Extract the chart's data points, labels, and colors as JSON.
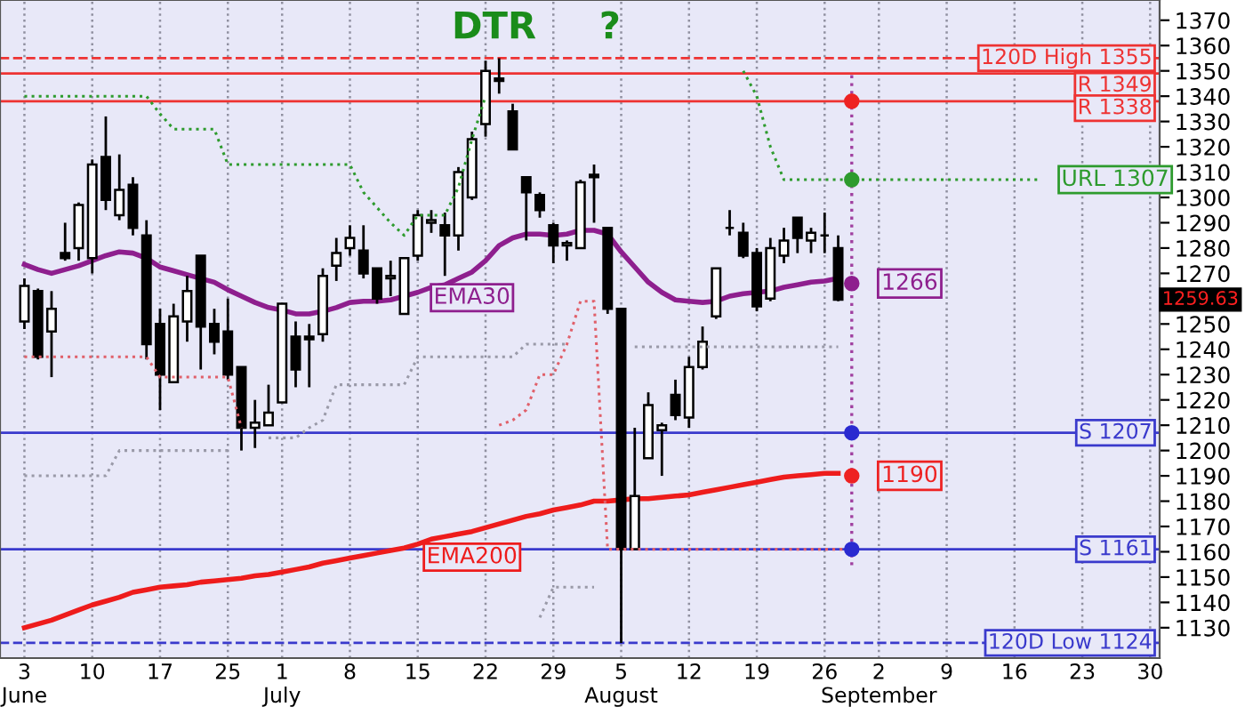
{
  "chart_data": {
    "type": "candlestick",
    "color": "#000000",
    "categories": [
      "3\nJune",
      null,
      null,
      null,
      null,
      "10",
      null,
      null,
      null,
      null,
      "17",
      null,
      null,
      null,
      null,
      "25",
      null,
      null,
      null,
      "1\nJuly",
      null,
      null,
      null,
      null,
      "8",
      null,
      null,
      null,
      null,
      "15",
      null,
      null,
      null,
      null,
      "22",
      null,
      null,
      null,
      null,
      "29",
      null,
      null,
      null,
      null,
      "5\nAugust",
      null,
      null,
      null,
      null,
      "12",
      null,
      null,
      null,
      null,
      "19",
      null,
      null,
      null,
      null,
      "26",
      null,
      null,
      null,
      "2\nSeptember",
      null,
      null,
      null,
      null,
      "9",
      null,
      null,
      null,
      null,
      "16",
      null,
      null,
      null,
      null,
      "23",
      null,
      null,
      null,
      null,
      "30"
    ],
    "ohlc": [
      [
        1251,
        1268,
        1248,
        1265
      ],
      [
        1263,
        1264,
        1236,
        1237
      ],
      [
        1247,
        1263,
        1229,
        1256
      ],
      [
        1278,
        1290,
        1275,
        1276
      ],
      [
        1280,
        1298,
        1275,
        1297
      ],
      [
        1276,
        1315,
        1270,
        1313
      ],
      [
        1316,
        1332,
        1295,
        1299
      ],
      [
        1293,
        1317,
        1291,
        1303
      ],
      [
        1305,
        1308,
        1285,
        1288
      ],
      [
        1285,
        1291,
        1236,
        1242
      ],
      [
        1250,
        1256,
        1216,
        1230
      ],
      [
        1227,
        1258,
        1227,
        1253
      ],
      [
        1251,
        1269,
        1243,
        1263
      ],
      [
        1277,
        1277,
        1232,
        1249
      ],
      [
        1250,
        1256,
        1238,
        1243
      ],
      [
        1247,
        1260,
        1228,
        1230
      ],
      [
        1233,
        1233,
        1200,
        1209
      ],
      [
        1209,
        1220,
        1201,
        1211
      ],
      [
        1210,
        1226,
        1210,
        1215
      ],
      [
        1219,
        1258,
        1219,
        1258
      ],
      [
        1245,
        1251,
        1225,
        1232
      ],
      [
        1245,
        1250,
        1225,
        1244
      ],
      [
        1246,
        1272,
        1243,
        1269
      ],
      [
        1273,
        1284,
        1267,
        1278
      ],
      [
        1280,
        1289,
        1277,
        1284
      ],
      [
        1279,
        1289,
        1268,
        1270
      ],
      [
        1272,
        1272,
        1258,
        1260
      ],
      [
        1268,
        1275,
        1261,
        1269
      ],
      [
        1254,
        1276,
        1254,
        1276
      ],
      [
        1277,
        1295,
        1275,
        1293
      ],
      [
        1290,
        1295,
        1286,
        1291
      ],
      [
        1289,
        1294,
        1269,
        1285
      ],
      [
        1285,
        1312,
        1279,
        1310
      ],
      [
        1300,
        1326,
        1299,
        1323
      ],
      [
        1329,
        1354,
        1324,
        1350
      ],
      [
        1347,
        1355,
        1341,
        1346
      ],
      [
        1334,
        1337,
        1319,
        1319
      ],
      [
        1308,
        1308,
        1283,
        1302
      ],
      [
        1301,
        1302,
        1292,
        1295
      ],
      [
        1289,
        1290,
        1274,
        1281
      ],
      [
        1281,
        1283,
        1275,
        1282
      ],
      [
        1280,
        1307,
        1280,
        1306
      ],
      [
        1309,
        1313,
        1290,
        1308
      ],
      [
        1288,
        1288,
        1254,
        1256
      ],
      [
        1256,
        1256,
        1124,
        1161
      ],
      [
        1161,
        1209,
        1161,
        1182
      ],
      [
        1197,
        1223,
        1197,
        1218
      ],
      [
        1208,
        1211,
        1190,
        1210
      ],
      [
        1222,
        1228,
        1212,
        1214
      ],
      [
        1213,
        1237,
        1209,
        1233
      ],
      [
        1233,
        1249,
        1232,
        1243
      ],
      [
        1253,
        1272,
        1252,
        1272
      ],
      [
        1288,
        1295,
        1285,
        1288
      ],
      [
        1286,
        1290,
        1276,
        1277
      ],
      [
        1278,
        1280,
        1255,
        1257
      ],
      [
        1260,
        1284,
        1259,
        1280
      ],
      [
        1277,
        1288,
        1274,
        1283
      ],
      [
        1292,
        1292,
        1278,
        1284
      ],
      [
        1283,
        1288,
        1278,
        1286
      ],
      [
        1285,
        1294,
        1278,
        1285
      ],
      [
        1280,
        1285,
        1259,
        1259.63
      ],
      null,
      null,
      null,
      null,
      null,
      null,
      null,
      null,
      null,
      null,
      null,
      null,
      null,
      null,
      null,
      null,
      null,
      null,
      null,
      null,
      null,
      null,
      null
    ],
    "series": [
      {
        "name": "EMA30",
        "type": "line",
        "color": "#8e1f8e",
        "line_style": "solid",
        "values": [
          1273.5,
          1271.5,
          1270,
          1271.5,
          1273,
          1275,
          1277,
          1278.5,
          1278,
          1276,
          1272.5,
          1271,
          1269.5,
          1268,
          1266.5,
          1263.5,
          1261,
          1258.5,
          1256.5,
          1255.5,
          1254,
          1254,
          1255,
          1256.5,
          1258.5,
          1259,
          1259,
          1259.5,
          1261,
          1262.5,
          1264.5,
          1265.5,
          1268,
          1270.5,
          1275,
          1281,
          1284,
          1285.5,
          1285.5,
          1285,
          1285.5,
          1287,
          1287,
          1285.5,
          1278.5,
          1272.5,
          1266.5,
          1262.5,
          1259.5,
          1259,
          1258.5,
          1259,
          1261,
          1262,
          1262.5,
          1263,
          1264.5,
          1265.5,
          1266.5,
          1267,
          1268,
          null,
          null,
          null,
          null,
          null,
          null,
          null,
          null,
          null,
          null,
          null,
          null,
          null,
          null,
          null,
          null,
          null,
          null,
          null,
          null,
          null,
          null,
          null
        ]
      },
      {
        "name": "EMA200",
        "type": "line",
        "color": "#ee1c1c",
        "line_style": "solid",
        "values": [
          1130,
          1131.5,
          1133,
          1135,
          1137,
          1139,
          1140.5,
          1142,
          1144,
          1145,
          1146,
          1146.5,
          1147,
          1148,
          1148.5,
          1149,
          1149.5,
          1150.5,
          1151,
          1152,
          1153,
          1154,
          1155.5,
          1156.5,
          1157.5,
          1158.5,
          1159.5,
          1160.5,
          1161.5,
          1163,
          1165,
          1166,
          1167,
          1168,
          1169.5,
          1171,
          1172.5,
          1174,
          1175,
          1176.5,
          1177.5,
          1178.5,
          1180,
          1180,
          1180.5,
          1181,
          1181,
          1181.5,
          1182,
          1182.5,
          1183.5,
          1184.5,
          1185.5,
          1186.5,
          1187.5,
          1188.5,
          1189.5,
          1190,
          1190.5,
          1191,
          1191,
          null,
          null,
          null,
          null,
          null,
          null,
          null,
          null,
          null,
          null,
          null,
          null,
          null,
          null,
          null,
          null,
          null,
          null,
          null,
          null,
          null,
          null,
          null
        ]
      },
      {
        "type": "line",
        "color": "#2e9b2e",
        "line_style": "dotted",
        "values": [
          1340,
          1340,
          1340,
          1340,
          1340,
          1340,
          1340,
          1340,
          1340,
          1340,
          1333,
          1327,
          1327,
          1327,
          1327,
          1313,
          1313,
          1313,
          1313,
          1313,
          1313,
          1313,
          1313,
          1313,
          1313,
          1302,
          1296,
          1290,
          1285,
          1293,
          1293,
          1293,
          1304,
          1323,
          1340,
          null,
          null,
          null,
          null,
          null,
          null,
          null,
          null,
          null,
          null,
          null,
          null,
          null,
          null,
          null,
          null,
          null,
          null,
          1350,
          1340,
          1320,
          1307,
          1307,
          1307,
          1307,
          1307,
          1307,
          1307,
          1307,
          1307,
          1307,
          1307,
          1307,
          1307,
          1307,
          1307,
          1307,
          1307,
          1307,
          1307,
          1307,
          null,
          null,
          null,
          null,
          null,
          null,
          null,
          null
        ],
        "value_labels": [
          null,
          null,
          null,
          null,
          null,
          null,
          null,
          null,
          null,
          null,
          null,
          null,
          null,
          null,
          null,
          null,
          null,
          null,
          null,
          null,
          null,
          null,
          null,
          null,
          null,
          null,
          null,
          null,
          null,
          null,
          null,
          null,
          null,
          null,
          null,
          null,
          null,
          null,
          null,
          null,
          null,
          null,
          null,
          null,
          null,
          null,
          null,
          null,
          null,
          null,
          null,
          null,
          null,
          null,
          null,
          null,
          null,
          null,
          null,
          null,
          null,
          null,
          null,
          null,
          null,
          null,
          null,
          null,
          null,
          null,
          null,
          null,
          null,
          null,
          null,
          "URL 1307",
          null,
          null,
          null,
          null,
          null,
          null,
          null,
          null
        ]
      },
      {
        "type": "line",
        "color": "#e0606a",
        "line_style": "dotted",
        "values": [
          1237,
          1237,
          1237,
          1237,
          1237,
          1237,
          1237,
          1237,
          1237,
          1237,
          1229,
          1229,
          1229,
          1229,
          1229,
          1229,
          1209,
          null,
          null,
          null,
          null,
          null,
          null,
          null,
          null,
          null,
          null,
          null,
          null,
          null,
          null,
          null,
          null,
          null,
          null,
          1210,
          1212,
          1216,
          1230,
          1230,
          1242,
          1259,
          1259,
          1161,
          1161,
          1161,
          1161,
          1161,
          1161,
          1161,
          1161,
          1161,
          1161,
          1161,
          1161,
          1161,
          1161,
          1161,
          1161,
          1161,
          1161,
          1161,
          null,
          null,
          null,
          null,
          null,
          null,
          null,
          null,
          null,
          null,
          null,
          null,
          null,
          null,
          null,
          null,
          null,
          null,
          null,
          null,
          null,
          null
        ]
      },
      {
        "type": "line",
        "color": "#9a9aa8",
        "line_style": "dotted",
        "values": [
          1190,
          1190,
          1190,
          1190,
          1190,
          1190,
          1190,
          1200,
          1200,
          1200,
          1200,
          1200,
          1200,
          1200,
          1200,
          1200,
          null,
          null,
          1205,
          1205,
          1205,
          1209,
          1212,
          1226,
          1226,
          1226,
          1226,
          1226,
          1226,
          1237,
          1237,
          1237,
          1237,
          1237,
          1237,
          1237,
          1237,
          1242,
          1242,
          1242,
          1242,
          null,
          null,
          null,
          null,
          1241,
          1241,
          1241,
          1241,
          1241,
          1241,
          1241,
          1241,
          1241,
          1241,
          1241,
          1241,
          1241,
          1241,
          1241,
          1241,
          null,
          null,
          null,
          null,
          null,
          null,
          null,
          null,
          null,
          null,
          null,
          null,
          null,
          null,
          null,
          null,
          null,
          null,
          null,
          null,
          null,
          null,
          null
        ]
      },
      {
        "type": "line",
        "color": "#9a9aa8",
        "line_style": "dotted",
        "values": [
          null,
          null,
          null,
          null,
          null,
          null,
          null,
          null,
          null,
          null,
          null,
          null,
          null,
          null,
          null,
          null,
          null,
          null,
          null,
          null,
          null,
          null,
          null,
          null,
          null,
          null,
          null,
          null,
          null,
          null,
          null,
          null,
          null,
          null,
          null,
          null,
          null,
          null,
          1134,
          1146,
          1146,
          1146,
          1146,
          null,
          null,
          null,
          null,
          null,
          null,
          null,
          null,
          null,
          null,
          null,
          null,
          null,
          null,
          null,
          null,
          null,
          null,
          null,
          null,
          null,
          null,
          null,
          null,
          null,
          null,
          null,
          null,
          null,
          null,
          null,
          null,
          null,
          null,
          null,
          null,
          null,
          null,
          null,
          null,
          null
        ]
      },
      {
        "type": "scatter",
        "marker": "circle",
        "color": "#ee2222",
        "values": [
          null,
          null,
          null,
          null,
          null,
          null,
          null,
          null,
          null,
          null,
          null,
          null,
          null,
          null,
          null,
          null,
          null,
          null,
          null,
          null,
          null,
          null,
          null,
          null,
          null,
          null,
          null,
          null,
          null,
          null,
          null,
          null,
          null,
          null,
          null,
          null,
          null,
          null,
          null,
          null,
          null,
          null,
          null,
          null,
          null,
          null,
          null,
          null,
          null,
          null,
          null,
          null,
          null,
          null,
          null,
          null,
          null,
          null,
          null,
          null,
          null,
          1338,
          null,
          null,
          null,
          null,
          null,
          null,
          null,
          null,
          null,
          null,
          null,
          null,
          null,
          null,
          null,
          null,
          null,
          null,
          null,
          null,
          null,
          null
        ]
      },
      {
        "type": "scatter",
        "marker": "circle",
        "color": "#2e9b2e",
        "values": [
          null,
          null,
          null,
          null,
          null,
          null,
          null,
          null,
          null,
          null,
          null,
          null,
          null,
          null,
          null,
          null,
          null,
          null,
          null,
          null,
          null,
          null,
          null,
          null,
          null,
          null,
          null,
          null,
          null,
          null,
          null,
          null,
          null,
          null,
          null,
          null,
          null,
          null,
          null,
          null,
          null,
          null,
          null,
          null,
          null,
          null,
          null,
          null,
          null,
          null,
          null,
          null,
          null,
          null,
          null,
          null,
          null,
          null,
          null,
          null,
          null,
          1307,
          null,
          null,
          null,
          null,
          null,
          null,
          null,
          null,
          null,
          null,
          null,
          null,
          null,
          null,
          null,
          null,
          null,
          null,
          null,
          null,
          null,
          null
        ]
      },
      {
        "type": "scatter",
        "marker": "circle",
        "color": "#8e1f8e",
        "values": [
          null,
          null,
          null,
          null,
          null,
          null,
          null,
          null,
          null,
          null,
          null,
          null,
          null,
          null,
          null,
          null,
          null,
          null,
          null,
          null,
          null,
          null,
          null,
          null,
          null,
          null,
          null,
          null,
          null,
          null,
          null,
          null,
          null,
          null,
          null,
          null,
          null,
          null,
          null,
          null,
          null,
          null,
          null,
          null,
          null,
          null,
          null,
          null,
          null,
          null,
          null,
          null,
          null,
          null,
          null,
          null,
          null,
          null,
          null,
          null,
          null,
          1266,
          null,
          null,
          null,
          null,
          null,
          null,
          null,
          null,
          null,
          null,
          null,
          null,
          null,
          null,
          null,
          null,
          null,
          null,
          null,
          null,
          null,
          null
        ],
        "value_labels": [
          null,
          null,
          null,
          null,
          null,
          null,
          null,
          null,
          null,
          null,
          null,
          null,
          null,
          null,
          null,
          null,
          null,
          null,
          null,
          null,
          null,
          null,
          null,
          null,
          null,
          null,
          null,
          null,
          null,
          null,
          null,
          null,
          null,
          null,
          null,
          null,
          null,
          null,
          null,
          null,
          null,
          null,
          null,
          null,
          null,
          null,
          null,
          null,
          null,
          null,
          null,
          null,
          null,
          null,
          null,
          null,
          null,
          null,
          null,
          null,
          null,
          "1266",
          null,
          null,
          null,
          null,
          null,
          null,
          null,
          null,
          null,
          null,
          null,
          null,
          null,
          null,
          null,
          null,
          null,
          null,
          null,
          null,
          null,
          null
        ]
      },
      {
        "type": "scatter",
        "marker": "circle",
        "color": "#2a2ad0",
        "values": [
          null,
          null,
          null,
          null,
          null,
          null,
          null,
          null,
          null,
          null,
          null,
          null,
          null,
          null,
          null,
          null,
          null,
          null,
          null,
          null,
          null,
          null,
          null,
          null,
          null,
          null,
          null,
          null,
          null,
          null,
          null,
          null,
          null,
          null,
          null,
          null,
          null,
          null,
          null,
          null,
          null,
          null,
          null,
          null,
          null,
          null,
          null,
          null,
          null,
          null,
          null,
          null,
          null,
          null,
          null,
          null,
          null,
          null,
          null,
          null,
          null,
          1207,
          null,
          null,
          null,
          null,
          null,
          null,
          null,
          null,
          null,
          null,
          null,
          null,
          null,
          null,
          null,
          null,
          null,
          null,
          null,
          null,
          null,
          null
        ]
      },
      {
        "type": "scatter",
        "marker": "circle",
        "color": "#ee2222",
        "values": [
          null,
          null,
          null,
          null,
          null,
          null,
          null,
          null,
          null,
          null,
          null,
          null,
          null,
          null,
          null,
          null,
          null,
          null,
          null,
          null,
          null,
          null,
          null,
          null,
          null,
          null,
          null,
          null,
          null,
          null,
          null,
          null,
          null,
          null,
          null,
          null,
          null,
          null,
          null,
          null,
          null,
          null,
          null,
          null,
          null,
          null,
          null,
          null,
          null,
          null,
          null,
          null,
          null,
          null,
          null,
          null,
          null,
          null,
          null,
          null,
          null,
          1190,
          null,
          null,
          null,
          null,
          null,
          null,
          null,
          null,
          null,
          null,
          null,
          null,
          null,
          null,
          null,
          null,
          null,
          null,
          null,
          null,
          null,
          null
        ],
        "value_labels": [
          null,
          null,
          null,
          null,
          null,
          null,
          null,
          null,
          null,
          null,
          null,
          null,
          null,
          null,
          null,
          null,
          null,
          null,
          null,
          null,
          null,
          null,
          null,
          null,
          null,
          null,
          null,
          null,
          null,
          null,
          null,
          null,
          null,
          null,
          null,
          null,
          null,
          null,
          null,
          null,
          null,
          null,
          null,
          null,
          null,
          null,
          null,
          null,
          null,
          null,
          null,
          null,
          null,
          null,
          null,
          null,
          null,
          null,
          null,
          null,
          null,
          "1190",
          null,
          null,
          null,
          null,
          null,
          null,
          null,
          null,
          null,
          null,
          null,
          null,
          null,
          null,
          null,
          null,
          null,
          null,
          null,
          null,
          null,
          null
        ]
      },
      {
        "type": "scatter",
        "marker": "circle",
        "color": "#2a2ad0",
        "values": [
          null,
          null,
          null,
          null,
          null,
          null,
          null,
          null,
          null,
          null,
          null,
          null,
          null,
          null,
          null,
          null,
          null,
          null,
          null,
          null,
          null,
          null,
          null,
          null,
          null,
          null,
          null,
          null,
          null,
          null,
          null,
          null,
          null,
          null,
          null,
          null,
          null,
          null,
          null,
          null,
          null,
          null,
          null,
          null,
          null,
          null,
          null,
          null,
          null,
          null,
          null,
          null,
          null,
          null,
          null,
          null,
          null,
          null,
          null,
          null,
          null,
          1161,
          null,
          null,
          null,
          null,
          null,
          null,
          null,
          null,
          null,
          null,
          null,
          null,
          null,
          null,
          null,
          null,
          null,
          null,
          null,
          null,
          null,
          null
        ]
      }
    ],
    "ref_lines": [
      {
        "axis": "y",
        "value": 1355,
        "label": "120D High 1355",
        "color": "#ee3333",
        "line_style": "dashed"
      },
      {
        "axis": "y",
        "value": 1349,
        "label": "R 1349",
        "color": "#ee3333",
        "line_style": "solid"
      },
      {
        "axis": "y",
        "value": 1338,
        "label": "R 1338",
        "color": "#ee3333",
        "line_style": "solid"
      },
      {
        "axis": "y",
        "value": 1207,
        "label": "S 1207",
        "color": "#3a3acc",
        "line_style": "solid"
      },
      {
        "axis": "y",
        "value": 1161,
        "label": "S 1161",
        "color": "#3a3acc",
        "line_style": "solid"
      },
      {
        "axis": "y",
        "value": 1124,
        "label": "120D Low 1124",
        "color": "#3a3acc",
        "line_style": "dashed"
      }
    ],
    "annotations": [
      "DTR",
      "?",
      "1259.63"
    ],
    "ylim": [
      1118,
      1378
    ],
    "yticks": [
      1130,
      1140,
      1150,
      1160,
      1170,
      1180,
      1190,
      1200,
      1210,
      1220,
      1230,
      1240,
      1250,
      1270,
      1280,
      1290,
      1300,
      1310,
      1320,
      1330,
      1340,
      1350,
      1360,
      1370
    ],
    "grid": "x",
    "legend": false
  }
}
